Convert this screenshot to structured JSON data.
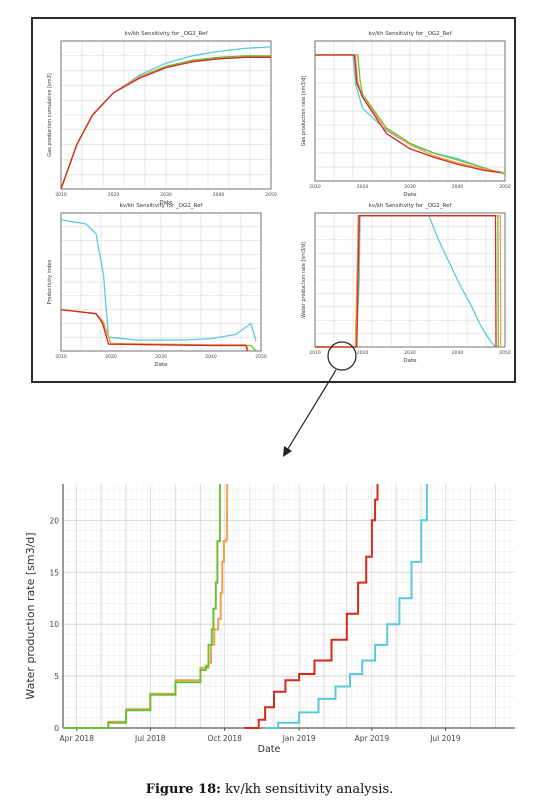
{
  "colors": {
    "red": "#d42a1c",
    "green": "#6cbf3a",
    "orange": "#f0a050",
    "cyan": "#5cc8dc",
    "grid": "#d4d4d4",
    "axis": "#333333"
  },
  "panels": [
    {
      "type": "line",
      "title": "kv/kh Sensitivity for _OG2_Ref",
      "xlabel": "Date",
      "ylabel": "Gas production cumulative [sm3]",
      "xticks": [
        "2010",
        "2020",
        "2030",
        "2040",
        "2050"
      ],
      "series": [
        {
          "color": "cyan",
          "points": [
            [
              2010,
              0
            ],
            [
              2013,
              0.3
            ],
            [
              2016,
              0.5
            ],
            [
              2020,
              0.65
            ],
            [
              2025,
              0.77
            ],
            [
              2030,
              0.85
            ],
            [
              2035,
              0.9
            ],
            [
              2040,
              0.93
            ],
            [
              2045,
              0.95
            ],
            [
              2050,
              0.96
            ]
          ]
        },
        {
          "color": "green",
          "points": [
            [
              2010,
              0
            ],
            [
              2013,
              0.3
            ],
            [
              2016,
              0.5
            ],
            [
              2020,
              0.65
            ],
            [
              2025,
              0.76
            ],
            [
              2030,
              0.83
            ],
            [
              2035,
              0.87
            ],
            [
              2040,
              0.89
            ],
            [
              2045,
              0.9
            ],
            [
              2050,
              0.9
            ]
          ]
        },
        {
          "color": "orange",
          "points": [
            [
              2010,
              0
            ],
            [
              2013,
              0.3
            ],
            [
              2016,
              0.5
            ],
            [
              2020,
              0.65
            ],
            [
              2025,
              0.76
            ],
            [
              2030,
              0.82
            ],
            [
              2035,
              0.86
            ],
            [
              2040,
              0.88
            ],
            [
              2045,
              0.89
            ],
            [
              2050,
              0.89
            ]
          ]
        },
        {
          "color": "red",
          "points": [
            [
              2010,
              0
            ],
            [
              2013,
              0.3
            ],
            [
              2016,
              0.5
            ],
            [
              2020,
              0.65
            ],
            [
              2025,
              0.75
            ],
            [
              2030,
              0.82
            ],
            [
              2035,
              0.86
            ],
            [
              2040,
              0.88
            ],
            [
              2045,
              0.89
            ],
            [
              2050,
              0.89
            ]
          ]
        }
      ]
    },
    {
      "type": "line",
      "title": "kv/kh Sensitivity for _OG2_Ref",
      "xlabel": "Date",
      "ylabel": "Gas production rate [sm3/d]",
      "xticks": [
        "2010",
        "2020",
        "2030",
        "2040",
        "2050"
      ],
      "series": [
        {
          "color": "cyan",
          "points": [
            [
              2010,
              0.9
            ],
            [
              2018,
              0.9
            ],
            [
              2018.5,
              0.7
            ],
            [
              2020,
              0.52
            ],
            [
              2025,
              0.36
            ],
            [
              2030,
              0.26
            ],
            [
              2035,
              0.2
            ],
            [
              2040,
              0.16
            ],
            [
              2045,
              0.1
            ],
            [
              2048,
              0.07
            ],
            [
              2050,
              0.05
            ]
          ]
        },
        {
          "color": "green",
          "points": [
            [
              2010,
              0.9
            ],
            [
              2019,
              0.9
            ],
            [
              2019.5,
              0.72
            ],
            [
              2020,
              0.62
            ],
            [
              2025,
              0.38
            ],
            [
              2030,
              0.27
            ],
            [
              2035,
              0.2
            ],
            [
              2040,
              0.15
            ],
            [
              2045,
              0.1
            ],
            [
              2050,
              0.05
            ]
          ]
        },
        {
          "color": "orange",
          "points": [
            [
              2010,
              0.9
            ],
            [
              2018.5,
              0.9
            ],
            [
              2019,
              0.71
            ],
            [
              2020,
              0.6
            ],
            [
              2025,
              0.37
            ],
            [
              2030,
              0.26
            ],
            [
              2035,
              0.18
            ],
            [
              2040,
              0.13
            ],
            [
              2045,
              0.09
            ],
            [
              2050,
              0.06
            ]
          ]
        },
        {
          "color": "red",
          "points": [
            [
              2010,
              0.9
            ],
            [
              2018.3,
              0.9
            ],
            [
              2018.8,
              0.7
            ],
            [
              2020,
              0.6
            ],
            [
              2025,
              0.34
            ],
            [
              2030,
              0.23
            ],
            [
              2035,
              0.17
            ],
            [
              2040,
              0.12
            ],
            [
              2045,
              0.08
            ],
            [
              2049,
              0.06
            ]
          ]
        }
      ]
    },
    {
      "type": "line",
      "title": "kv/kh Sensitivity for _OG2_Ref",
      "xlabel": "Date",
      "ylabel": "Productivity index",
      "xticks": [
        "2010",
        "2020",
        "2030",
        "2040",
        "2050"
      ],
      "series": [
        {
          "color": "cyan",
          "points": [
            [
              2010,
              0.95
            ],
            [
              2015,
              0.92
            ],
            [
              2017,
              0.85
            ],
            [
              2018.5,
              0.55
            ],
            [
              2019.5,
              0.1
            ],
            [
              2025,
              0.08
            ],
            [
              2030,
              0.08
            ],
            [
              2035,
              0.08
            ],
            [
              2040,
              0.09
            ],
            [
              2045,
              0.12
            ],
            [
              2048,
              0.2
            ],
            [
              2049,
              0.07
            ]
          ]
        },
        {
          "color": "green",
          "points": [
            [
              2010,
              0.3
            ],
            [
              2017,
              0.27
            ],
            [
              2018.5,
              0.2
            ],
            [
              2020,
              0.05
            ],
            [
              2030,
              0.045
            ],
            [
              2040,
              0.04
            ],
            [
              2048,
              0.04
            ],
            [
              2049,
              0.0
            ]
          ]
        },
        {
          "color": "orange",
          "points": [
            [
              2010,
              0.3
            ],
            [
              2017,
              0.27
            ],
            [
              2018.5,
              0.21
            ],
            [
              2020,
              0.055
            ],
            [
              2030,
              0.05
            ],
            [
              2040,
              0.045
            ],
            [
              2047,
              0.045
            ],
            [
              2047.5,
              0.0
            ]
          ]
        },
        {
          "color": "red",
          "points": [
            [
              2010,
              0.3
            ],
            [
              2017,
              0.27
            ],
            [
              2018.3,
              0.2
            ],
            [
              2019.5,
              0.05
            ],
            [
              2030,
              0.045
            ],
            [
              2040,
              0.04
            ],
            [
              2047,
              0.04
            ],
            [
              2047.3,
              0.0
            ]
          ]
        }
      ]
    },
    {
      "type": "line",
      "title": "kv/kh Sensitivity for _OG2_Ref",
      "xlabel": "Date",
      "ylabel": "Water production rate [sm3/d]",
      "xticks": [
        "2010",
        "2020",
        "2030",
        "2040",
        "2050"
      ],
      "series": [
        {
          "color": "cyan",
          "points": [
            [
              2010,
              0
            ],
            [
              2018.7,
              0
            ],
            [
              2019.3,
              0.5
            ],
            [
              2019.5,
              0.98
            ],
            [
              2034,
              0.98
            ],
            [
              2036,
              0.8
            ],
            [
              2040,
              0.5
            ],
            [
              2043,
              0.3
            ],
            [
              2045,
              0.15
            ],
            [
              2047,
              0.04
            ],
            [
              2048,
              0.0
            ]
          ]
        },
        {
          "color": "green",
          "points": [
            [
              2010,
              0
            ],
            [
              2018.5,
              0
            ],
            [
              2019.2,
              0.98
            ],
            [
              2048.5,
              0.98
            ],
            [
              2048.6,
              0.0
            ]
          ]
        },
        {
          "color": "orange",
          "points": [
            [
              2010,
              0
            ],
            [
              2018.5,
              0
            ],
            [
              2019.1,
              0.98
            ],
            [
              2049,
              0.98
            ],
            [
              2049.1,
              0.0
            ]
          ]
        },
        {
          "color": "red",
          "points": [
            [
              2010,
              0
            ],
            [
              2018.8,
              0
            ],
            [
              2019.3,
              0.98
            ],
            [
              2048,
              0.98
            ],
            [
              2048.1,
              0.0
            ]
          ]
        }
      ]
    }
  ],
  "chart_data": {
    "type": "line",
    "xlabel": "Date",
    "ylabel": "Water production rate [sm3/d]",
    "xlim": [
      "2018-03-15",
      "2019-09-25"
    ],
    "ylim": [
      0,
      23.5
    ],
    "xticks": [
      "Apr 2018",
      "Jul 2018",
      "Oct 2018",
      "Jan 2019",
      "Apr 2019",
      "Jul 2019"
    ],
    "xtick_dates": [
      "2018-04-01",
      "2018-07-01",
      "2018-10-01",
      "2019-01-01",
      "2019-04-01",
      "2019-07-01"
    ],
    "yticks": [
      0,
      5,
      10,
      15,
      20
    ],
    "grid": true,
    "series": [
      {
        "color": "orange",
        "points": [
          [
            "2018-03-15",
            0
          ],
          [
            "2018-04-25",
            0
          ],
          [
            "2018-05-10",
            0.6
          ],
          [
            "2018-06-01",
            1.8
          ],
          [
            "2018-07-01",
            3.3
          ],
          [
            "2018-08-01",
            4.6
          ],
          [
            "2018-09-01",
            5.8
          ],
          [
            "2018-09-11",
            6.3
          ],
          [
            "2018-09-14",
            8.0
          ],
          [
            "2018-09-18",
            9.5
          ],
          [
            "2018-09-23",
            10.5
          ],
          [
            "2018-09-26",
            13.0
          ],
          [
            "2018-09-28",
            16.0
          ],
          [
            "2018-09-30",
            18.0
          ],
          [
            "2018-10-03",
            18.2
          ],
          [
            "2018-10-04",
            23.5
          ]
        ]
      },
      {
        "color": "green",
        "points": [
          [
            "2018-03-15",
            0
          ],
          [
            "2018-04-25",
            0
          ],
          [
            "2018-05-10",
            0.5
          ],
          [
            "2018-06-01",
            1.7
          ],
          [
            "2018-07-01",
            3.2
          ],
          [
            "2018-08-01",
            4.4
          ],
          [
            "2018-09-01",
            5.6
          ],
          [
            "2018-09-08",
            6.0
          ],
          [
            "2018-09-11",
            8.0
          ],
          [
            "2018-09-15",
            9.5
          ],
          [
            "2018-09-17",
            11.5
          ],
          [
            "2018-09-20",
            14.0
          ],
          [
            "2018-09-22",
            18.0
          ],
          [
            "2018-09-25",
            23.5
          ]
        ]
      },
      {
        "color": "red",
        "points": [
          [
            "2018-10-25",
            0
          ],
          [
            "2018-11-08",
            0
          ],
          [
            "2018-11-12",
            0.8
          ],
          [
            "2018-11-20",
            2.0
          ],
          [
            "2018-12-01",
            3.5
          ],
          [
            "2018-12-15",
            4.6
          ],
          [
            "2019-01-01",
            5.2
          ],
          [
            "2019-01-20",
            6.5
          ],
          [
            "2019-02-10",
            8.5
          ],
          [
            "2019-03-01",
            11.0
          ],
          [
            "2019-03-15",
            14.0
          ],
          [
            "2019-03-25",
            16.5
          ],
          [
            "2019-04-01",
            20.0
          ],
          [
            "2019-04-05",
            22.0
          ],
          [
            "2019-04-08",
            23.5
          ]
        ]
      },
      {
        "color": "cyan",
        "points": [
          [
            "2018-11-20",
            0
          ],
          [
            "2018-12-01",
            0
          ],
          [
            "2018-12-06",
            0.5
          ],
          [
            "2019-01-01",
            1.5
          ],
          [
            "2019-01-25",
            2.8
          ],
          [
            "2019-02-15",
            4.0
          ],
          [
            "2019-03-05",
            5.2
          ],
          [
            "2019-03-20",
            6.5
          ],
          [
            "2019-04-05",
            8.0
          ],
          [
            "2019-04-20",
            10.0
          ],
          [
            "2019-05-05",
            12.5
          ],
          [
            "2019-05-20",
            16.0
          ],
          [
            "2019-06-01",
            20.0
          ],
          [
            "2019-06-08",
            23.5
          ]
        ]
      }
    ]
  },
  "caption": {
    "label": "Figure 18:",
    "text": " kv/kh sensitivity analysis."
  }
}
